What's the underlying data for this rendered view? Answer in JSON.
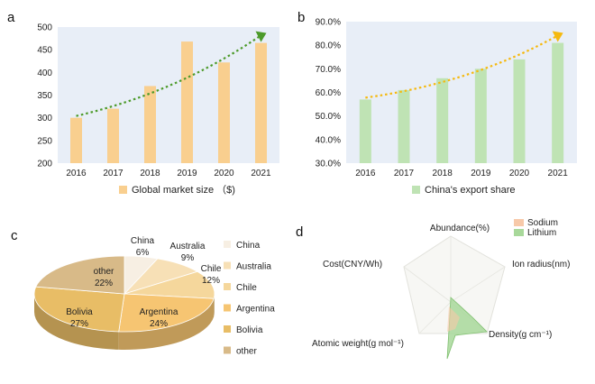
{
  "panels": {
    "a": {
      "letter": "a"
    },
    "b": {
      "letter": "b"
    },
    "c": {
      "letter": "c"
    },
    "d": {
      "letter": "d"
    }
  },
  "chart_data": [
    {
      "type": "bar",
      "categories": [
        "2016",
        "2017",
        "2018",
        "2019",
        "2020",
        "2021"
      ],
      "values": [
        300,
        320,
        370,
        468,
        422,
        465
      ],
      "ylim": [
        200,
        500
      ],
      "yticks": [
        "200",
        "250",
        "300",
        "350",
        "400",
        "450",
        "500"
      ],
      "legend": "Global market size （$)",
      "bar_color": "#f9cf8f",
      "plot_bg": "#e8eef7",
      "trend_color": "#4c9a2a",
      "grid": false
    },
    {
      "type": "bar",
      "categories": [
        "2016",
        "2017",
        "2018",
        "2019",
        "2020",
        "2021"
      ],
      "values": [
        0.57,
        0.61,
        0.66,
        0.7,
        0.74,
        0.81
      ],
      "ylim": [
        0.3,
        0.9
      ],
      "yticks": [
        "30.0%",
        "40.0%",
        "50.0%",
        "60.0%",
        "70.0%",
        "80.0%",
        "90.0%"
      ],
      "legend": "China's export share",
      "bar_color": "#bfe3b4",
      "plot_bg": "#e8eef7",
      "trend_color": "#f5b90f",
      "grid": false
    },
    {
      "type": "pie",
      "labels": [
        "China",
        "Australia",
        "Chile",
        "Argentina",
        "Bolivia",
        "other"
      ],
      "values": [
        6,
        9,
        12,
        24,
        27,
        22
      ],
      "value_labels": [
        "6%",
        "9%",
        "12%",
        "24%",
        "27%",
        "22%"
      ],
      "colors": [
        "#f7efe3",
        "#f7e0b6",
        "#f5d79c",
        "#f6c572",
        "#e8bd66",
        "#d8ba88"
      ],
      "legend": [
        "China",
        "Australia",
        "Chile",
        "Argentina",
        "Bolivia",
        "other"
      ],
      "style": "3d"
    },
    {
      "type": "radar",
      "axes": [
        "Abundance(%)",
        "Ion radius(nm)",
        "Density(g cm⁻¹)",
        "Atomic weight(g mol⁻¹)",
        "Cost(CNY/Wh)"
      ],
      "series": [
        {
          "name": "Sodium",
          "color": "#f7c9a9"
        },
        {
          "name": "Lithium",
          "color": "#a8d89a"
        }
      ]
    }
  ]
}
